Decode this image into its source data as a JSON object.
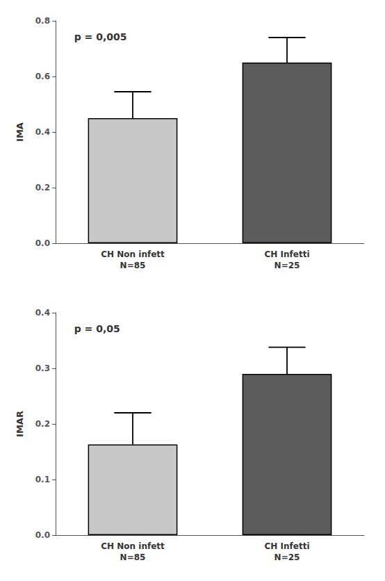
{
  "chart_data": [
    {
      "type": "bar",
      "ylabel": "IMA",
      "annotation": "p = 0,005",
      "categories": [
        "CH Non infett\nN=85",
        "CH Infetti\nN=25"
      ],
      "values": [
        0.45,
        0.65
      ],
      "errors_up": [
        0.095,
        0.09
      ],
      "colors": [
        "#c8c8c8",
        "#5c5c5c"
      ],
      "ylim": [
        0.0,
        0.8
      ],
      "yticks": [
        {
          "value": 0.0,
          "label": "0.0"
        },
        0.2,
        0.4,
        0.6,
        0.8
      ],
      "grid": false
    },
    {
      "type": "bar",
      "ylabel": "IMAR",
      "annotation": "p = 0,05",
      "categories": [
        "CH Non infett\nN=85",
        "CH Infetti\nN=25"
      ],
      "values": [
        0.163,
        0.29
      ],
      "errors_up": [
        0.057,
        0.048
      ],
      "colors": [
        "#c8c8c8",
        "#5c5c5c"
      ],
      "ylim": [
        0.0,
        0.4
      ],
      "yticks": [
        {
          "value": 0.0,
          "label": "0.0"
        },
        0.1,
        0.2,
        0.3,
        0.4
      ],
      "grid": false
    }
  ]
}
